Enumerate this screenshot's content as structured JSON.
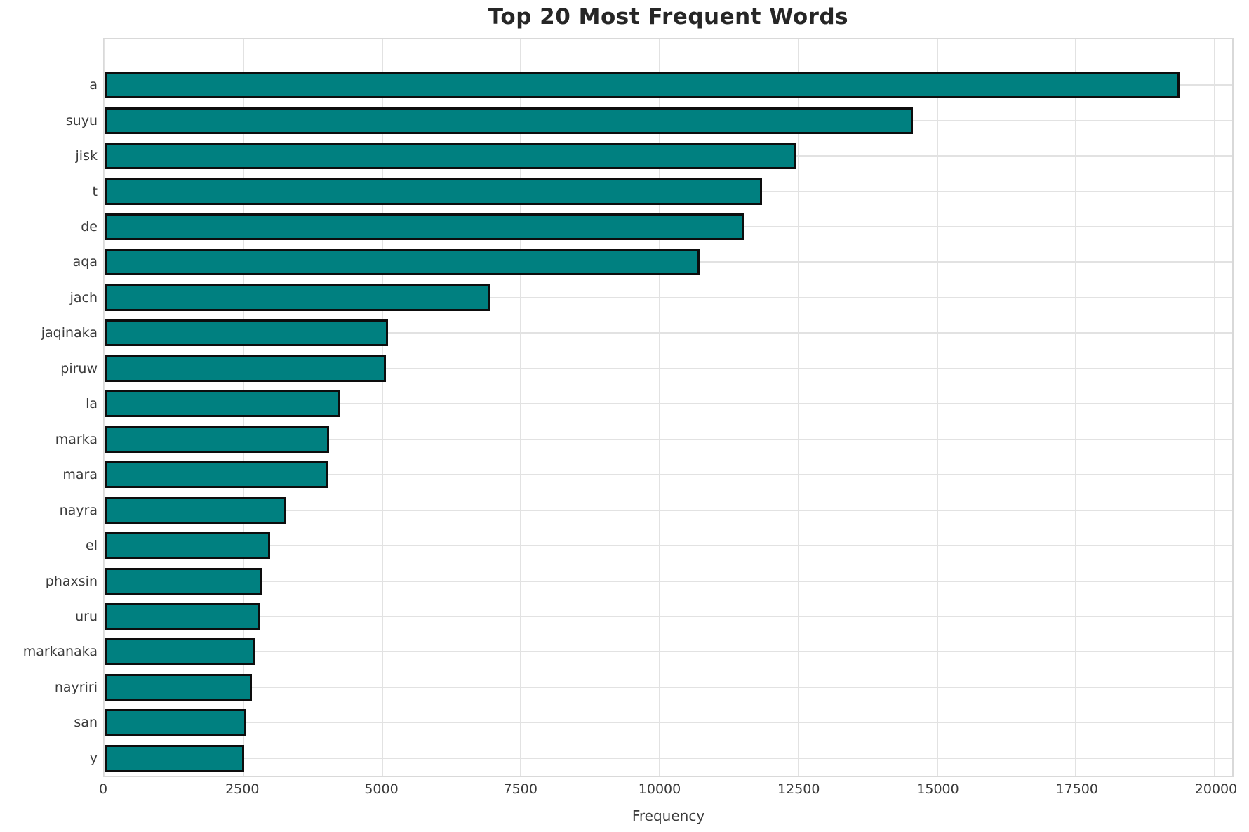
{
  "chart_data": {
    "type": "bar",
    "orientation": "horizontal",
    "title": "Top 20 Most Frequent Words",
    "xlabel": "Frequency",
    "ylabel": "",
    "categories": [
      "a",
      "suyu",
      "jisk",
      "t",
      "de",
      "aqa",
      "jach",
      "jaqinaka",
      "piruw",
      "la",
      "marka",
      "mara",
      "nayra",
      "el",
      "phaxsin",
      "uru",
      "markanaka",
      "nayriri",
      "san",
      "y"
    ],
    "values": [
      19370,
      14560,
      12460,
      11850,
      11530,
      10720,
      6940,
      5110,
      5070,
      4230,
      4050,
      4020,
      3270,
      2980,
      2840,
      2800,
      2700,
      2660,
      2550,
      2510
    ],
    "xticks": [
      0,
      2500,
      5000,
      7500,
      10000,
      12500,
      15000,
      17500,
      20000
    ],
    "xlim": [
      0,
      20315
    ],
    "grid": true,
    "legend": false,
    "bar_color": "#008080",
    "bar_edge_color": "#0d0d0d",
    "grid_color": "#e2e2e2",
    "background": "#ffffff"
  }
}
